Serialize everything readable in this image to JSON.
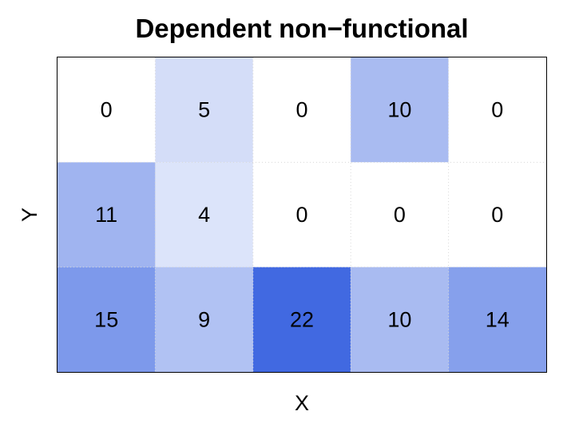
{
  "chart_data": {
    "type": "heatmap",
    "title": "Dependent non−functional",
    "xlabel": "X",
    "ylabel": "Y",
    "n_cols": 5,
    "n_rows": 3,
    "rows_top_to_bottom": [
      [
        0,
        5,
        0,
        10,
        0
      ],
      [
        11,
        4,
        0,
        0,
        0
      ],
      [
        15,
        9,
        22,
        10,
        14
      ]
    ],
    "color_low": "#ffffff",
    "color_high": "#4169e1",
    "value_min": 0,
    "value_max": 22,
    "grid": "dotted"
  }
}
